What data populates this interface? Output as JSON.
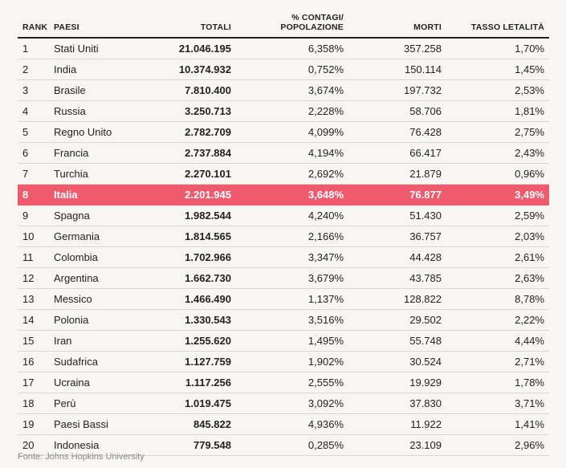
{
  "headers": {
    "rank": "RANK",
    "country": "PAESI",
    "total": "TOTALI",
    "ratio_line1": "% CONTAGI/",
    "ratio_line2": "POPOLAZIONE",
    "deaths": "MORTI",
    "lethality": "TASSO LETALITÀ"
  },
  "rows": [
    {
      "rank": "1",
      "country": "Stati Uniti",
      "total": "21.046.195",
      "ratio": "6,358%",
      "deaths": "357.258",
      "lethality": "1,70%"
    },
    {
      "rank": "2",
      "country": "India",
      "total": "10.374.932",
      "ratio": "0,752%",
      "deaths": "150.114",
      "lethality": "1,45%"
    },
    {
      "rank": "3",
      "country": "Brasile",
      "total": "7.810.400",
      "ratio": "3,674%",
      "deaths": "197.732",
      "lethality": "2,53%"
    },
    {
      "rank": "4",
      "country": "Russia",
      "total": "3.250.713",
      "ratio": "2,228%",
      "deaths": "58.706",
      "lethality": "1,81%"
    },
    {
      "rank": "5",
      "country": "Regno Unito",
      "total": "2.782.709",
      "ratio": "4,099%",
      "deaths": "76.428",
      "lethality": "2,75%"
    },
    {
      "rank": "6",
      "country": "Francia",
      "total": "2.737.884",
      "ratio": "4,194%",
      "deaths": "66.417",
      "lethality": "2,43%"
    },
    {
      "rank": "7",
      "country": "Turchia",
      "total": "2.270.101",
      "ratio": "2,692%",
      "deaths": "21.879",
      "lethality": "0,96%"
    },
    {
      "rank": "8",
      "country": "Italia",
      "total": "2.201.945",
      "ratio": "3,648%",
      "deaths": "76.877",
      "lethality": "3,49%"
    },
    {
      "rank": "9",
      "country": "Spagna",
      "total": "1.982.544",
      "ratio": "4,240%",
      "deaths": "51.430",
      "lethality": "2,59%"
    },
    {
      "rank": "10",
      "country": "Germania",
      "total": "1.814.565",
      "ratio": "2,166%",
      "deaths": "36.757",
      "lethality": "2,03%"
    },
    {
      "rank": "11",
      "country": "Colombia",
      "total": "1.702.966",
      "ratio": "3,347%",
      "deaths": "44.428",
      "lethality": "2,61%"
    },
    {
      "rank": "12",
      "country": "Argentina",
      "total": "1.662.730",
      "ratio": "3,679%",
      "deaths": "43.785",
      "lethality": "2,63%"
    },
    {
      "rank": "13",
      "country": "Messico",
      "total": "1.466.490",
      "ratio": "1,137%",
      "deaths": "128.822",
      "lethality": "8,78%"
    },
    {
      "rank": "14",
      "country": "Polonia",
      "total": "1.330.543",
      "ratio": "3,516%",
      "deaths": "29.502",
      "lethality": "2,22%"
    },
    {
      "rank": "15",
      "country": "Iran",
      "total": "1.255.620",
      "ratio": "1,495%",
      "deaths": "55.748",
      "lethality": "4,44%"
    },
    {
      "rank": "16",
      "country": "Sudafrica",
      "total": "1.127.759",
      "ratio": "1,902%",
      "deaths": "30.524",
      "lethality": "2,71%"
    },
    {
      "rank": "17",
      "country": "Ucraina",
      "total": "1.117.256",
      "ratio": "2,555%",
      "deaths": "19.929",
      "lethality": "1,78%"
    },
    {
      "rank": "18",
      "country": "Perù",
      "total": "1.019.475",
      "ratio": "3,092%",
      "deaths": "37.830",
      "lethality": "3,71%"
    },
    {
      "rank": "19",
      "country": "Paesi Bassi",
      "total": "845.822",
      "ratio": "4,936%",
      "deaths": "11.922",
      "lethality": "1,41%"
    },
    {
      "rank": "20",
      "country": "Indonesia",
      "total": "779.548",
      "ratio": "0,285%",
      "deaths": "23.109",
      "lethality": "2,96%"
    }
  ],
  "highlight_rank": "8",
  "colors": {
    "highlight_bg": "#ef5a6d",
    "background": "#f7f6f2"
  },
  "source": "Fonte: Johns Hopkins University"
}
